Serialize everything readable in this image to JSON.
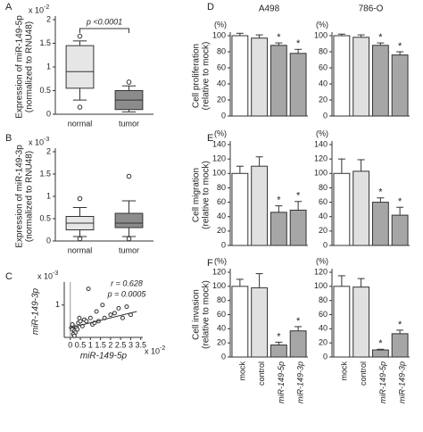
{
  "chart_data": [
    {
      "type": "box",
      "panel": "A",
      "ylabel": [
        "Expression of miR-149-5p",
        "(normalized to RNU48)"
      ],
      "y_multiplier": {
        "base": "x 10",
        "exp": "-2"
      },
      "categories": [
        "normal",
        "tumor"
      ],
      "annotation": "p <0.0001",
      "boxes": [
        {
          "whislo": 0.3,
          "q1": 0.55,
          "med": 0.9,
          "q3": 1.45,
          "whishi": 1.55,
          "fliers": [
            1.65,
            0.15
          ],
          "color": "#e6e6e6"
        },
        {
          "whislo": 0.05,
          "q1": 0.1,
          "med": 0.3,
          "q3": 0.5,
          "whishi": 0.6,
          "fliers": [
            0.68
          ],
          "color": "#8c8c8c"
        }
      ],
      "ylim": [
        0,
        2
      ],
      "yticks": [
        0,
        0.5,
        1,
        1.5,
        2
      ]
    },
    {
      "type": "box",
      "panel": "B",
      "ylabel": [
        "Expression of miR-149-3p",
        "(normalized to RNU48)"
      ],
      "y_multiplier": {
        "base": "x 10",
        "exp": "-3"
      },
      "categories": [
        "normal",
        "tumor"
      ],
      "boxes": [
        {
          "whislo": 0.1,
          "q1": 0.25,
          "med": 0.4,
          "q3": 0.55,
          "whishi": 0.75,
          "fliers": [
            0.95,
            0.05
          ],
          "color": "#e6e6e6"
        },
        {
          "whislo": 0.1,
          "q1": 0.3,
          "med": 0.4,
          "q3": 0.62,
          "whishi": 0.9,
          "fliers": [
            1.45,
            0.05
          ],
          "color": "#8c8c8c"
        }
      ],
      "ylim": [
        0,
        2
      ],
      "yticks": [
        0,
        0.5,
        1,
        1.5,
        2
      ]
    },
    {
      "type": "scatter",
      "panel": "C",
      "ylabel": [
        "miR-149-3p"
      ],
      "xlabel": "miR-149-5p",
      "y_multiplier": {
        "base": "x 10",
        "exp": "-3"
      },
      "x_multiplier": {
        "base": "x 10",
        "exp": "-2"
      },
      "annotations": [
        "r = 0.628",
        "p = 0.0005"
      ],
      "color": "#333333",
      "x": [
        0.05,
        0.1,
        0.15,
        0.2,
        0.1,
        0.3,
        0.25,
        0.4,
        0.35,
        0.5,
        0.6,
        0.7,
        0.8,
        0.9,
        1.0,
        1.1,
        1.2,
        1.3,
        1.4,
        1.6,
        1.7,
        2.0,
        2.2,
        2.4,
        2.6,
        2.8,
        3.0,
        0.15,
        0.2,
        0.45
      ],
      "y": [
        0.3,
        0.25,
        0.35,
        0.2,
        0.4,
        0.3,
        0.15,
        0.45,
        0.25,
        0.5,
        0.35,
        0.55,
        0.5,
        1.5,
        0.6,
        0.4,
        0.45,
        0.8,
        0.5,
        1.0,
        0.6,
        0.7,
        0.75,
        0.9,
        0.6,
        0.95,
        0.7,
        0.1,
        0.05,
        0.6
      ],
      "trend": {
        "x": [
          0,
          3.3
        ],
        "y": [
          0.3,
          0.8
        ]
      },
      "xlim": [
        -0.3,
        3.6
      ],
      "xticks": [
        0,
        0.5,
        1,
        1.5,
        2,
        2.5,
        3,
        3.5
      ],
      "ylim": [
        0,
        1.6
      ],
      "yticks": [
        1
      ]
    },
    {
      "type": "bar",
      "panel": "D",
      "title": "A498",
      "unit_label": "(%)",
      "ylabel": [
        "Cell proliferation",
        "(relative to mock)"
      ],
      "values": [
        100,
        97,
        88,
        78
      ],
      "errors": [
        3,
        4,
        3,
        5
      ],
      "significance": [
        null,
        null,
        "*",
        "*"
      ],
      "colors": [
        "#ffffff",
        "#e0e0e0",
        "#a6a6a6",
        "#a6a6a6"
      ],
      "ylim": [
        0,
        100
      ],
      "yticks": [
        0,
        20,
        40,
        60,
        80,
        100
      ]
    },
    {
      "type": "bar",
      "title": "786-O",
      "unit_label": "(%)",
      "values": [
        100,
        98,
        88,
        76
      ],
      "errors": [
        2,
        3,
        3,
        4
      ],
      "significance": [
        null,
        null,
        "*",
        "*"
      ],
      "colors": [
        "#ffffff",
        "#e0e0e0",
        "#a6a6a6",
        "#a6a6a6"
      ],
      "ylim": [
        0,
        100
      ],
      "yticks": [
        0,
        20,
        40,
        60,
        80,
        100
      ]
    },
    {
      "type": "bar",
      "panel": "E",
      "unit_label": "(%)",
      "ylabel": [
        "Cell migration",
        "(relative to mock)"
      ],
      "values": [
        100,
        110,
        46,
        49
      ],
      "errors": [
        10,
        13,
        9,
        12
      ],
      "significance": [
        null,
        null,
        "*",
        "*"
      ],
      "colors": [
        "#ffffff",
        "#e0e0e0",
        "#a6a6a6",
        "#a6a6a6"
      ],
      "ylim": [
        0,
        140
      ],
      "yticks": [
        0,
        20,
        40,
        60,
        80,
        100,
        120,
        140
      ]
    },
    {
      "type": "bar",
      "unit_label": "(%)",
      "values": [
        100,
        103,
        60,
        42
      ],
      "errors": [
        20,
        16,
        6,
        11
      ],
      "significance": [
        null,
        null,
        "*",
        "*"
      ],
      "colors": [
        "#ffffff",
        "#e0e0e0",
        "#a6a6a6",
        "#a6a6a6"
      ],
      "ylim": [
        0,
        140
      ],
      "yticks": [
        0,
        20,
        40,
        60,
        80,
        100,
        120,
        140
      ]
    },
    {
      "type": "bar",
      "panel": "F",
      "unit_label": "(%)",
      "ylabel": [
        "Cell invasion",
        "(relative to mock)"
      ],
      "categories": [
        "mock",
        "control",
        "miR-149-5p",
        "miR-149-3p"
      ],
      "values": [
        100,
        98,
        17,
        37
      ],
      "errors": [
        10,
        20,
        4,
        6
      ],
      "significance": [
        null,
        null,
        "*",
        "*"
      ],
      "colors": [
        "#ffffff",
        "#e0e0e0",
        "#a6a6a6",
        "#a6a6a6"
      ],
      "ylim": [
        0,
        120
      ],
      "yticks": [
        0,
        20,
        40,
        60,
        80,
        100,
        120
      ]
    },
    {
      "type": "bar",
      "unit_label": "(%)",
      "categories": [
        "mock",
        "control",
        "miR-149-5p",
        "miR-149-3p"
      ],
      "values": [
        100,
        99,
        10,
        33
      ],
      "errors": [
        15,
        12,
        1,
        5
      ],
      "significance": [
        null,
        null,
        "*",
        "*"
      ],
      "colors": [
        "#ffffff",
        "#e0e0e0",
        "#a6a6a6",
        "#a6a6a6"
      ],
      "ylim": [
        0,
        120
      ],
      "yticks": [
        0,
        20,
        40,
        60,
        80,
        100,
        120
      ]
    }
  ]
}
